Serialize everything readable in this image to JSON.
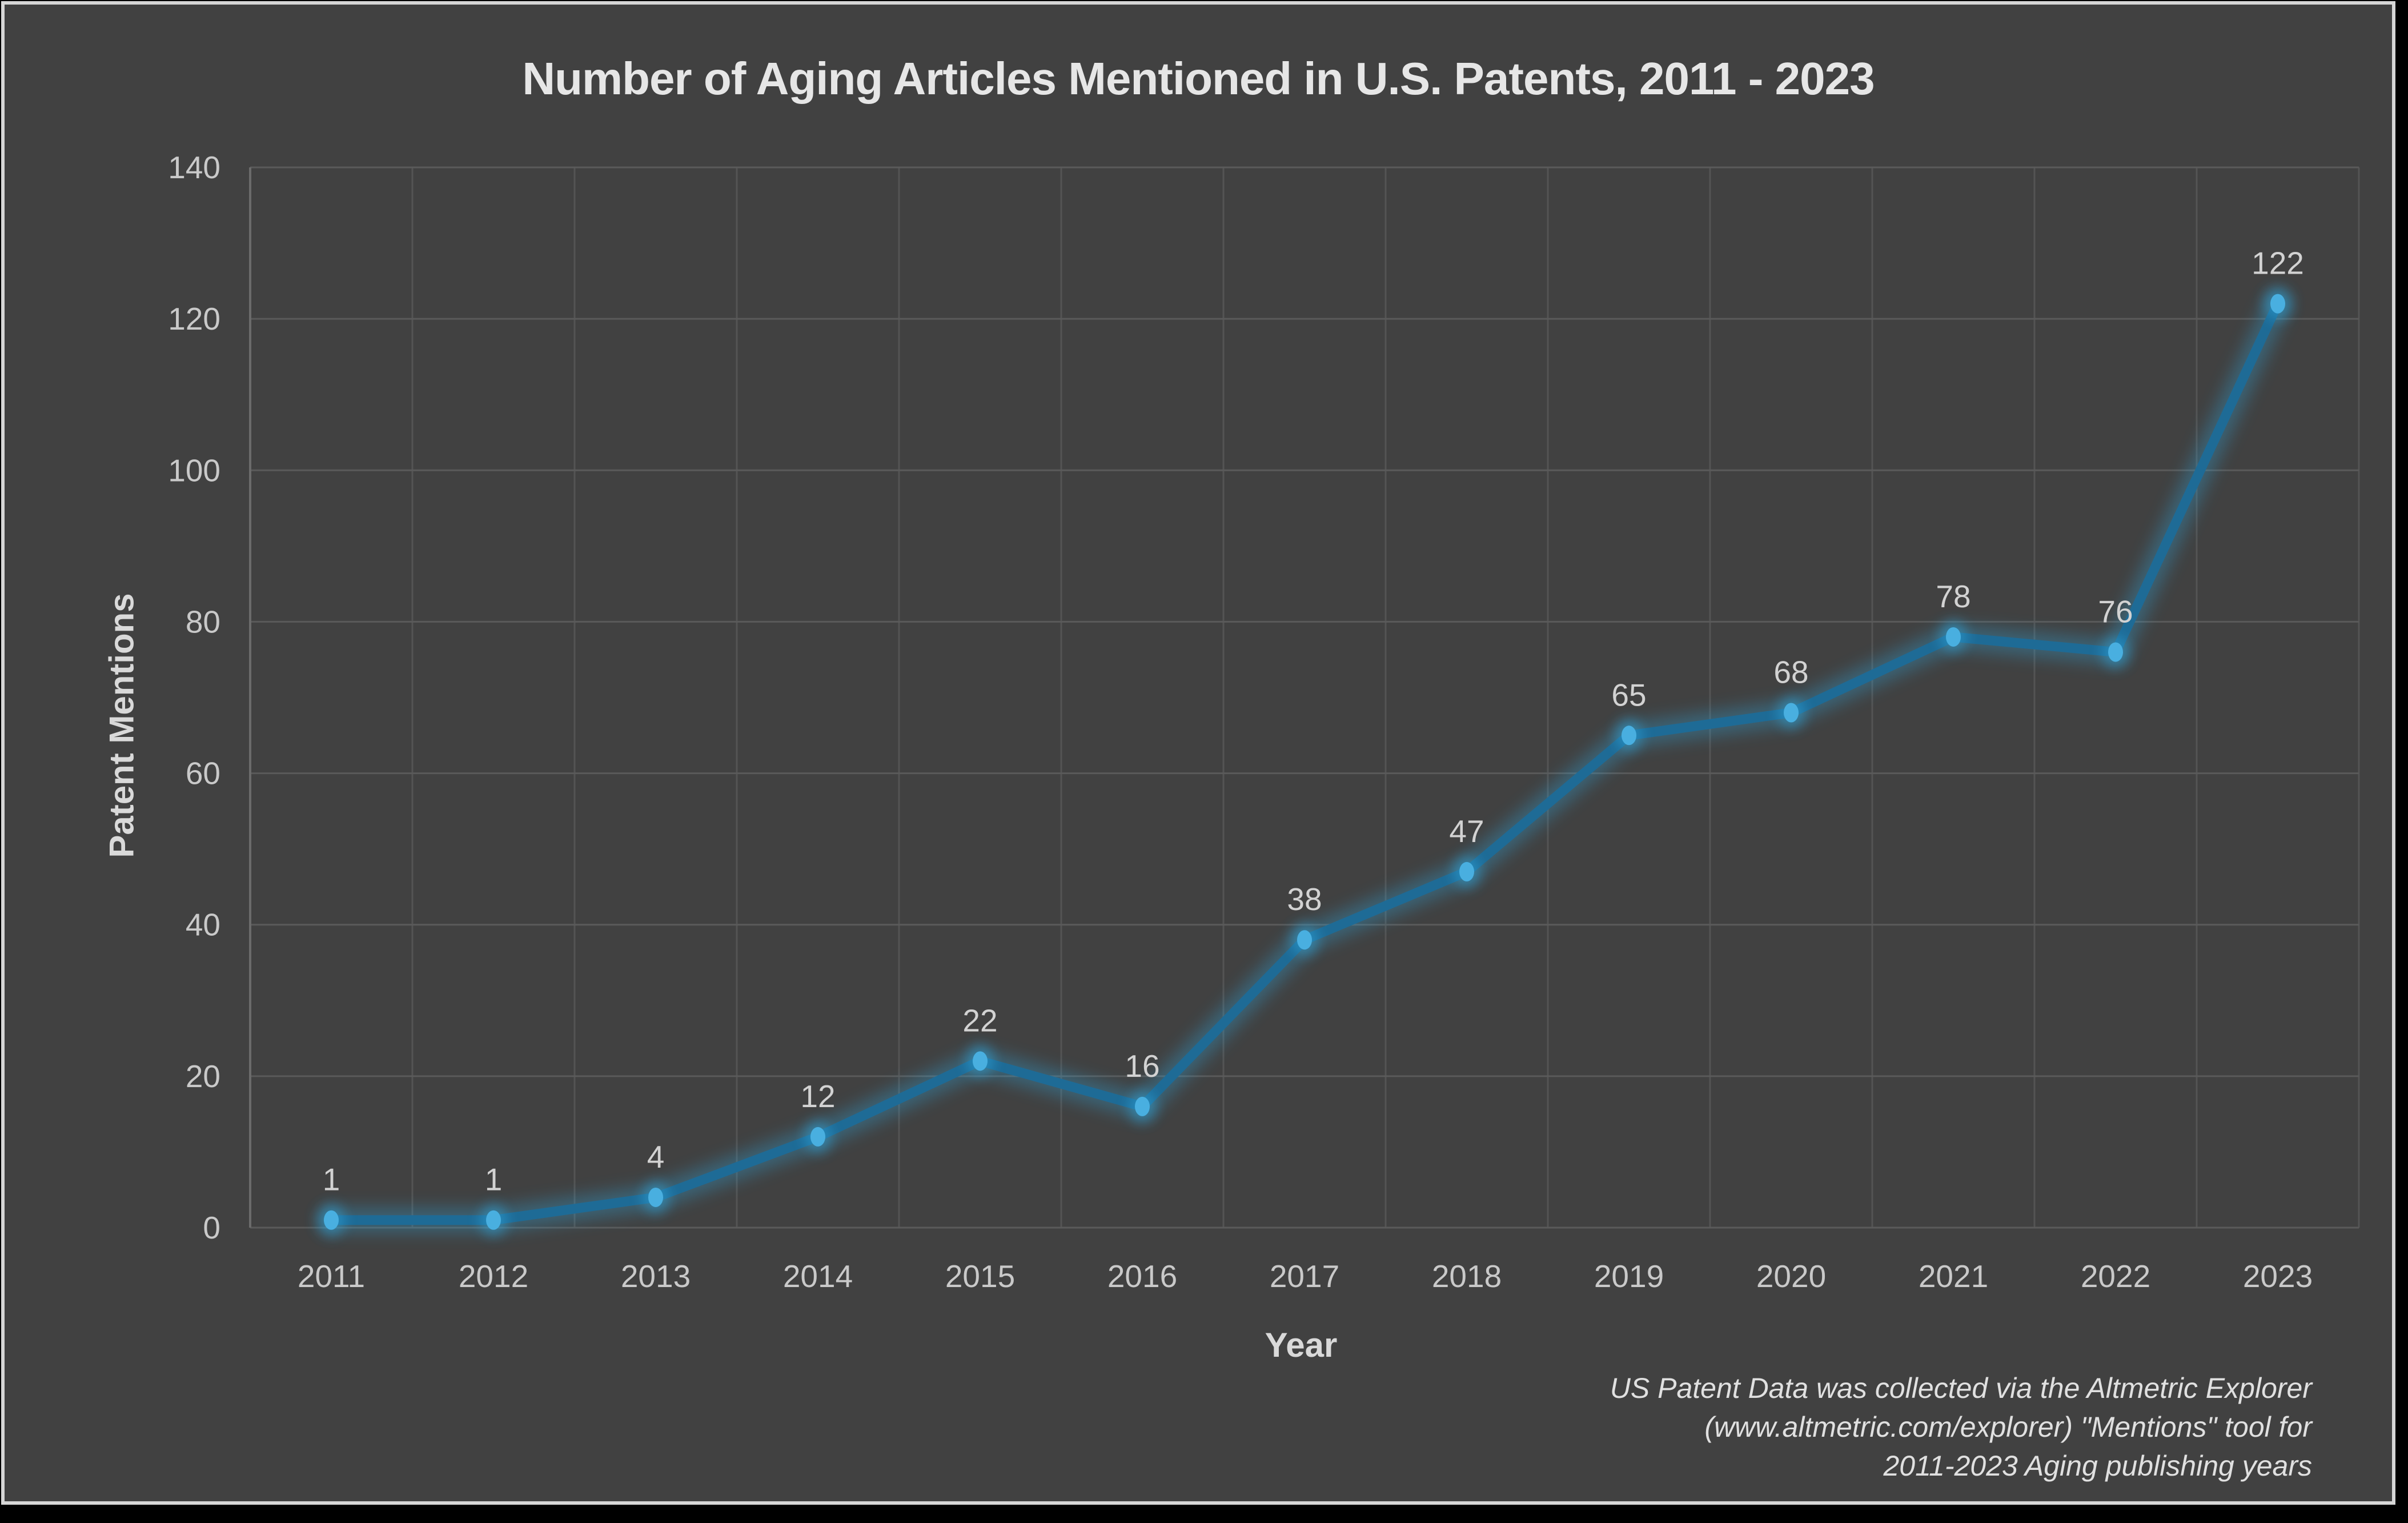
{
  "title": "Number of Aging Articles Mentioned in U.S. Patents, 2011 - 2023",
  "y_axis": {
    "title": "Patent Mentions"
  },
  "x_axis": {
    "title": "Year"
  },
  "footer": {
    "lines": [
      "US Patent Data was collected via the Altmetric Explorer",
      "(www.altmetric.com/explorer) \"Mentions\" tool for",
      "2011-2023 Aging publishing years"
    ]
  },
  "chart_data": {
    "type": "line",
    "title": "Number of Aging Articles Mentioned in U.S. Patents, 2011 - 2023",
    "xlabel": "Year",
    "ylabel": "Patent Mentions",
    "categories": [
      "2011",
      "2012",
      "2013",
      "2014",
      "2015",
      "2016",
      "2017",
      "2018",
      "2019",
      "2020",
      "2021",
      "2022",
      "2023"
    ],
    "values": [
      1,
      1,
      4,
      12,
      22,
      16,
      38,
      47,
      65,
      68,
      78,
      76,
      122
    ],
    "data_labels_visible": true,
    "ylim": [
      0,
      140
    ],
    "ytick_step": 20,
    "grid": true,
    "legend": "none",
    "colors": {
      "background": "#414141",
      "line": "#1e6b96",
      "marker": "#49afe0",
      "glow": "#2fa8e0",
      "grid_horizontal": "#5a5a5a",
      "grid_vertical": "#545454",
      "axis": "#6b6b6b",
      "data_label": "#d2d2d2",
      "tick_label": "#c9c9c9"
    }
  }
}
